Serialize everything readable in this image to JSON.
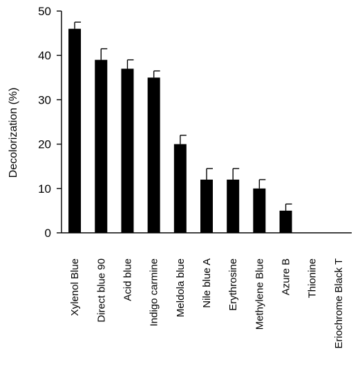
{
  "chart_data": {
    "type": "bar",
    "title": "",
    "xlabel": "",
    "ylabel": "Decolorization (%)",
    "ylim": [
      0,
      50
    ],
    "yticks": [
      0,
      10,
      20,
      30,
      40,
      50
    ],
    "grid": false,
    "legend": "none",
    "bar_color": "#000000",
    "categories": [
      "Xylenol Blue",
      "Direct blue 90",
      "Acid blue",
      "Indigo carmine",
      "Meldola blue",
      "Nile blue A",
      "Erythrosine",
      "Methylene Blue",
      "Azure B",
      "Thionine",
      "Eriochrome Black T"
    ],
    "values": [
      46,
      39,
      37,
      35,
      20,
      12,
      12,
      10,
      5,
      0,
      0
    ],
    "errors": [
      1.5,
      2.5,
      2,
      1.5,
      2,
      2.5,
      2.5,
      2,
      1.5,
      0,
      0
    ]
  }
}
